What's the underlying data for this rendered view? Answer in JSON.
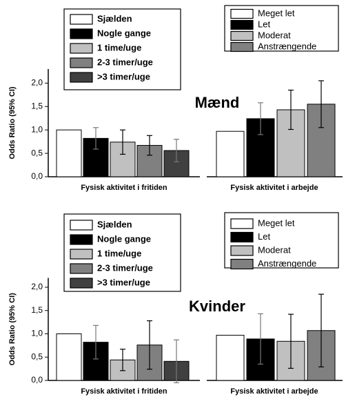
{
  "chart_data": [
    {
      "type": "bar",
      "title": "Mænd",
      "y_label": "Odds Ratio (95% CI)",
      "x_label": "Fysisk aktivitet i fritiden",
      "categories": [
        "Sjælden",
        "Nogle gange",
        "1 time/uge",
        "2-3 timer/uge",
        ">3 timer/uge"
      ],
      "values": [
        1.0,
        0.82,
        0.74,
        0.67,
        0.56
      ],
      "errors": [
        0,
        0.23,
        0.26,
        0.21,
        0.24
      ],
      "colors": [
        "#ffffff",
        "#000000",
        "#c0c0c0",
        "#808080",
        "#404040"
      ],
      "ylim": [
        0,
        2.3
      ],
      "yticks": [
        {
          "value": 0,
          "label": "0,0"
        },
        {
          "value": 0.5,
          "label": "0,5"
        },
        {
          "value": 1.0,
          "label": "1,0"
        },
        {
          "value": 1.5,
          "label": "1,5"
        },
        {
          "value": 2.0,
          "label": "2,0"
        }
      ]
    },
    {
      "type": "bar",
      "x_label": "Fysisk aktivitet i arbejde",
      "categories": [
        "Meget let",
        "Let",
        "Moderat",
        "Anstrængende"
      ],
      "values": [
        0.97,
        1.24,
        1.43,
        1.55
      ],
      "errors": [
        0,
        0.34,
        0.42,
        0.5
      ],
      "colors": [
        "#ffffff",
        "#000000",
        "#c0c0c0",
        "#808080"
      ],
      "ylim": [
        0,
        2.3
      ]
    },
    {
      "type": "bar",
      "title": "Kvinder",
      "y_label": "Odds Ratio (95% CI)",
      "x_label": "Fysisk aktivitet i fritiden",
      "categories": [
        "Sjælden",
        "Nogle gange",
        "1 time/uge",
        "2-3 timer/uge",
        ">3 timer/uge"
      ],
      "values": [
        1.0,
        0.82,
        0.44,
        0.76,
        0.41
      ],
      "errors": [
        0,
        0.36,
        0.23,
        0.52,
        0.46
      ],
      "colors": [
        "#ffffff",
        "#000000",
        "#c0c0c0",
        "#808080",
        "#404040"
      ],
      "ylim": [
        0,
        2.2
      ],
      "yticks": [
        {
          "value": 0,
          "label": "0,0"
        },
        {
          "value": 0.5,
          "label": "0,5"
        },
        {
          "value": 1.0,
          "label": "1,0"
        },
        {
          "value": 1.5,
          "label": "1,5"
        },
        {
          "value": 2.0,
          "label": "2,0"
        }
      ]
    },
    {
      "type": "bar",
      "x_label": "Fysisk aktivitet i arbejde",
      "categories": [
        "Meget let",
        "Let",
        "Moderat",
        "Anstrængende"
      ],
      "values": [
        0.97,
        0.89,
        0.84,
        1.07
      ],
      "errors": [
        0,
        0.54,
        0.58,
        0.78
      ],
      "colors": [
        "#ffffff",
        "#000000",
        "#c0c0c0",
        "#808080"
      ],
      "ylim": [
        0,
        2.2
      ]
    }
  ]
}
